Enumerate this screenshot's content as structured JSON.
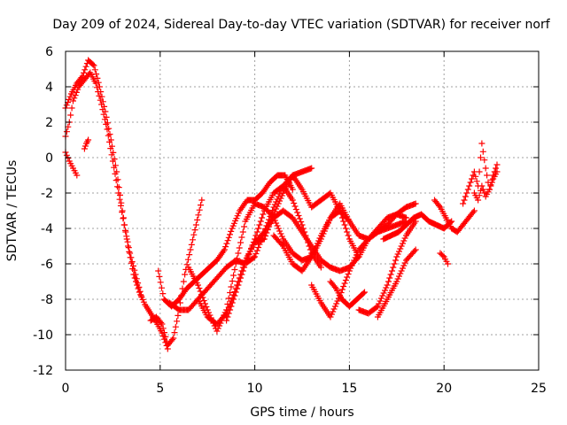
{
  "chart_data": {
    "type": "scatter",
    "title": "Day 209 of 2024, Sidereal Day-to-day VTEC variation (SDTVAR) for receiver norf",
    "xlabel": "GPS time / hours",
    "ylabel": "SDTVAR / TECUs",
    "xlim": [
      0,
      25
    ],
    "ylim": [
      -12,
      6
    ],
    "xticks": [
      0,
      5,
      10,
      15,
      20,
      25
    ],
    "yticks": [
      -12,
      -10,
      -8,
      -6,
      -4,
      -2,
      0,
      2,
      4,
      6
    ],
    "grid": true,
    "marker": "+",
    "color": "#ff0000",
    "series": [
      {
        "name": "track-1",
        "x": [
          0.0,
          0.3,
          0.6,
          0.9,
          1.2,
          1.5,
          1.8,
          2.1,
          2.4,
          2.7,
          3.0,
          3.3,
          3.6,
          3.9,
          4.2,
          4.5,
          4.8,
          5.1,
          5.4
        ],
        "y": [
          2.8,
          3.6,
          4.2,
          4.6,
          5.5,
          5.2,
          4.0,
          2.6,
          1.0,
          -0.8,
          -3.0,
          -5.0,
          -6.6,
          -7.6,
          -8.3,
          -8.8,
          -9.3,
          -9.9,
          -10.8
        ]
      },
      {
        "name": "track-2",
        "x": [
          0.0,
          0.2,
          0.4,
          0.7,
          1.0,
          1.3,
          1.6,
          1.9,
          2.2,
          2.5,
          2.8,
          3.1,
          3.4,
          3.7,
          4.0
        ],
        "y": [
          1.2,
          2.0,
          3.2,
          4.0,
          4.4,
          4.8,
          4.2,
          3.0,
          1.6,
          -0.2,
          -2.0,
          -3.8,
          -5.4,
          -6.6,
          -7.8
        ]
      },
      {
        "name": "track-3",
        "x": [
          0.0,
          0.2,
          0.4,
          0.6
        ],
        "y": [
          0.3,
          -0.2,
          -0.6,
          -1.0
        ]
      },
      {
        "name": "track-4",
        "x": [
          1.0,
          1.1,
          1.2
        ],
        "y": [
          0.5,
          0.8,
          1.0
        ]
      },
      {
        "name": "track-5",
        "x": [
          4.5,
          4.8,
          5.1,
          5.4,
          5.7,
          6.0,
          6.3,
          6.6,
          6.9,
          7.2
        ],
        "y": [
          -9.2,
          -9.0,
          -9.4,
          -10.6,
          -10.2,
          -8.6,
          -6.6,
          -5.2,
          -3.8,
          -2.4
        ]
      },
      {
        "name": "track-6",
        "x": [
          4.9,
          5.2,
          5.6,
          6.0,
          6.4,
          6.8,
          7.2,
          7.6,
          8.0,
          8.4,
          8.8,
          9.2,
          9.6,
          10.0,
          10.4,
          10.8,
          11.2,
          11.6,
          12.0
        ],
        "y": [
          -6.4,
          -8.0,
          -8.4,
          -8.0,
          -7.4,
          -7.0,
          -6.6,
          -6.2,
          -5.8,
          -5.2,
          -4.0,
          -3.0,
          -2.4,
          -2.4,
          -2.0,
          -1.4,
          -1.0,
          -1.0,
          -1.8
        ]
      },
      {
        "name": "track-7",
        "x": [
          5.5,
          6.0,
          6.5,
          7.0,
          7.5,
          8.0,
          8.5,
          9.0,
          9.5,
          10.0,
          10.5,
          11.0,
          11.5,
          12.0,
          12.5,
          13.0
        ],
        "y": [
          -8.2,
          -8.6,
          -8.6,
          -8.0,
          -7.4,
          -6.8,
          -6.2,
          -5.8,
          -6.0,
          -5.6,
          -4.2,
          -2.8,
          -1.6,
          -1.0,
          -0.8,
          -0.6
        ]
      },
      {
        "name": "track-8",
        "x": [
          6.5,
          7.0,
          7.5,
          8.0,
          8.5,
          9.0,
          9.5,
          10.0,
          10.5,
          11.0,
          11.5,
          12.0,
          12.5,
          13.0,
          13.5,
          14.0,
          14.5,
          15.0
        ],
        "y": [
          -6.2,
          -7.2,
          -8.6,
          -9.8,
          -8.6,
          -6.0,
          -3.6,
          -2.6,
          -2.8,
          -3.4,
          -4.6,
          -5.4,
          -5.8,
          -5.6,
          -4.6,
          -3.4,
          -2.6,
          -3.6
        ]
      },
      {
        "name": "track-9",
        "x": [
          7.0,
          7.5,
          8.0,
          8.5,
          9.0,
          9.5,
          10.0,
          10.5,
          11.0,
          11.5,
          12.0,
          12.5,
          13.0,
          13.5,
          14.0,
          14.5,
          15.0,
          15.5
        ],
        "y": [
          -8.0,
          -9.0,
          -9.4,
          -8.8,
          -7.4,
          -5.8,
          -4.8,
          -4.6,
          -3.2,
          -2.0,
          -1.0,
          -1.8,
          -2.8,
          -2.4,
          -2.0,
          -3.0,
          -4.6,
          -5.6
        ]
      },
      {
        "name": "track-10",
        "x": [
          8.5,
          9.0,
          9.5,
          10.0,
          10.5,
          11.0,
          11.5,
          12.0,
          12.5,
          13.0,
          13.5
        ],
        "y": [
          -9.2,
          -7.6,
          -6.0,
          -4.6,
          -3.0,
          -2.0,
          -1.6,
          -2.4,
          -3.8,
          -5.4,
          -6.2
        ]
      },
      {
        "name": "track-11",
        "x": [
          10.0,
          10.5,
          11.0,
          11.5,
          12.0,
          12.5,
          13.0,
          13.5,
          14.0,
          14.5,
          15.0,
          15.5,
          16.0,
          16.5,
          17.0,
          17.5,
          18.0
        ],
        "y": [
          -4.8,
          -4.2,
          -3.4,
          -3.0,
          -3.4,
          -4.2,
          -5.0,
          -5.8,
          -6.2,
          -6.4,
          -6.2,
          -5.6,
          -4.6,
          -4.0,
          -3.4,
          -3.2,
          -3.4
        ]
      },
      {
        "name": "track-12",
        "x": [
          11.0,
          11.5,
          12.0,
          12.5,
          13.0,
          13.5,
          14.0,
          14.5,
          15.0,
          15.5,
          16.0,
          16.5,
          17.0,
          17.5,
          18.0
        ],
        "y": [
          -4.4,
          -5.0,
          -6.0,
          -6.4,
          -5.6,
          -4.4,
          -3.4,
          -3.0,
          -3.6,
          -4.4,
          -4.6,
          -4.2,
          -4.0,
          -3.8,
          -3.6
        ]
      },
      {
        "name": "track-13",
        "x": [
          13.0,
          13.5,
          14.0,
          14.5,
          15.0,
          15.5,
          16.0,
          16.5,
          17.0,
          17.5,
          18.0,
          18.5
        ],
        "y": [
          -7.2,
          -8.2,
          -9.0,
          -7.8,
          -6.4,
          -5.2,
          -4.6,
          -4.2,
          -3.8,
          -3.2,
          -2.8,
          -2.6
        ]
      },
      {
        "name": "track-14",
        "x": [
          14.0,
          14.3,
          14.6,
          15.0,
          15.4,
          15.8
        ],
        "y": [
          -7.0,
          -7.4,
          -8.0,
          -8.4,
          -8.0,
          -7.6
        ]
      },
      {
        "name": "track-15",
        "x": [
          15.5,
          16.0,
          16.5,
          17.0,
          17.5,
          18.0,
          18.5
        ],
        "y": [
          -8.6,
          -8.8,
          -8.4,
          -7.2,
          -5.6,
          -4.4,
          -3.6
        ]
      },
      {
        "name": "track-16",
        "x": [
          16.5,
          17.0,
          17.5,
          18.0,
          18.5
        ],
        "y": [
          -9.0,
          -8.0,
          -7.0,
          -5.8,
          -5.2
        ]
      },
      {
        "name": "track-17",
        "x": [
          16.8,
          17.2,
          17.6,
          18.0,
          18.4,
          18.8,
          19.2,
          19.6,
          20.0,
          20.4
        ],
        "y": [
          -4.6,
          -4.4,
          -4.2,
          -3.8,
          -3.4,
          -3.2,
          -3.6,
          -3.8,
          -4.0,
          -3.6
        ]
      },
      {
        "name": "track-18",
        "x": [
          19.5,
          19.8,
          20.1,
          20.4,
          20.7,
          21.0,
          21.3,
          21.6
        ],
        "y": [
          -2.4,
          -2.8,
          -3.4,
          -4.0,
          -4.2,
          -3.8,
          -3.4,
          -3.0
        ]
      },
      {
        "name": "track-19",
        "x": [
          19.8,
          20.0,
          20.2
        ],
        "y": [
          -5.4,
          -5.6,
          -6.0
        ]
      },
      {
        "name": "track-20",
        "x": [
          21.0,
          21.2,
          21.4,
          21.6,
          21.8,
          22.0,
          22.2,
          22.4,
          22.6,
          22.8
        ],
        "y": [
          -2.6,
          -2.0,
          -1.4,
          -0.8,
          -1.6,
          0.8,
          -0.6,
          -1.8,
          -1.0,
          -0.4
        ]
      },
      {
        "name": "track-21",
        "x": [
          21.6,
          21.8,
          22.0,
          22.2,
          22.4,
          22.6,
          22.8
        ],
        "y": [
          -2.0,
          -2.4,
          -1.6,
          -2.2,
          -1.8,
          -1.2,
          -0.8
        ]
      }
    ]
  }
}
